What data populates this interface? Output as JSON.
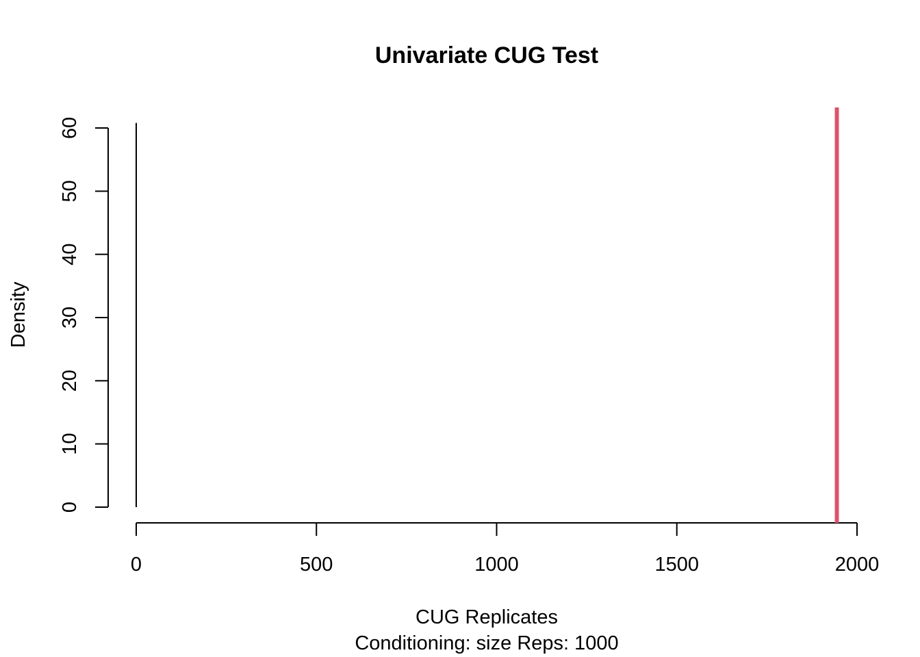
{
  "chart_data": {
    "type": "line",
    "title": "Univariate CUG Test",
    "xlabel": "CUG Replicates",
    "subtitle": "Conditioning: size Reps: 1000",
    "ylabel": "Density",
    "xlim": [
      0,
      2000
    ],
    "ylim": [
      0,
      60
    ],
    "x_ticks": [
      "0",
      "500",
      "1000",
      "1500",
      "2000"
    ],
    "y_ticks": [
      "0",
      "10",
      "20",
      "30",
      "40",
      "50",
      "60"
    ],
    "series": [
      {
        "values_x": [
          0,
          0
        ],
        "values_y": [
          0,
          60.8
        ],
        "color": "#000000"
      }
    ],
    "observed_line": {
      "x": 1944,
      "color": "#DF536B"
    },
    "grid": false
  }
}
